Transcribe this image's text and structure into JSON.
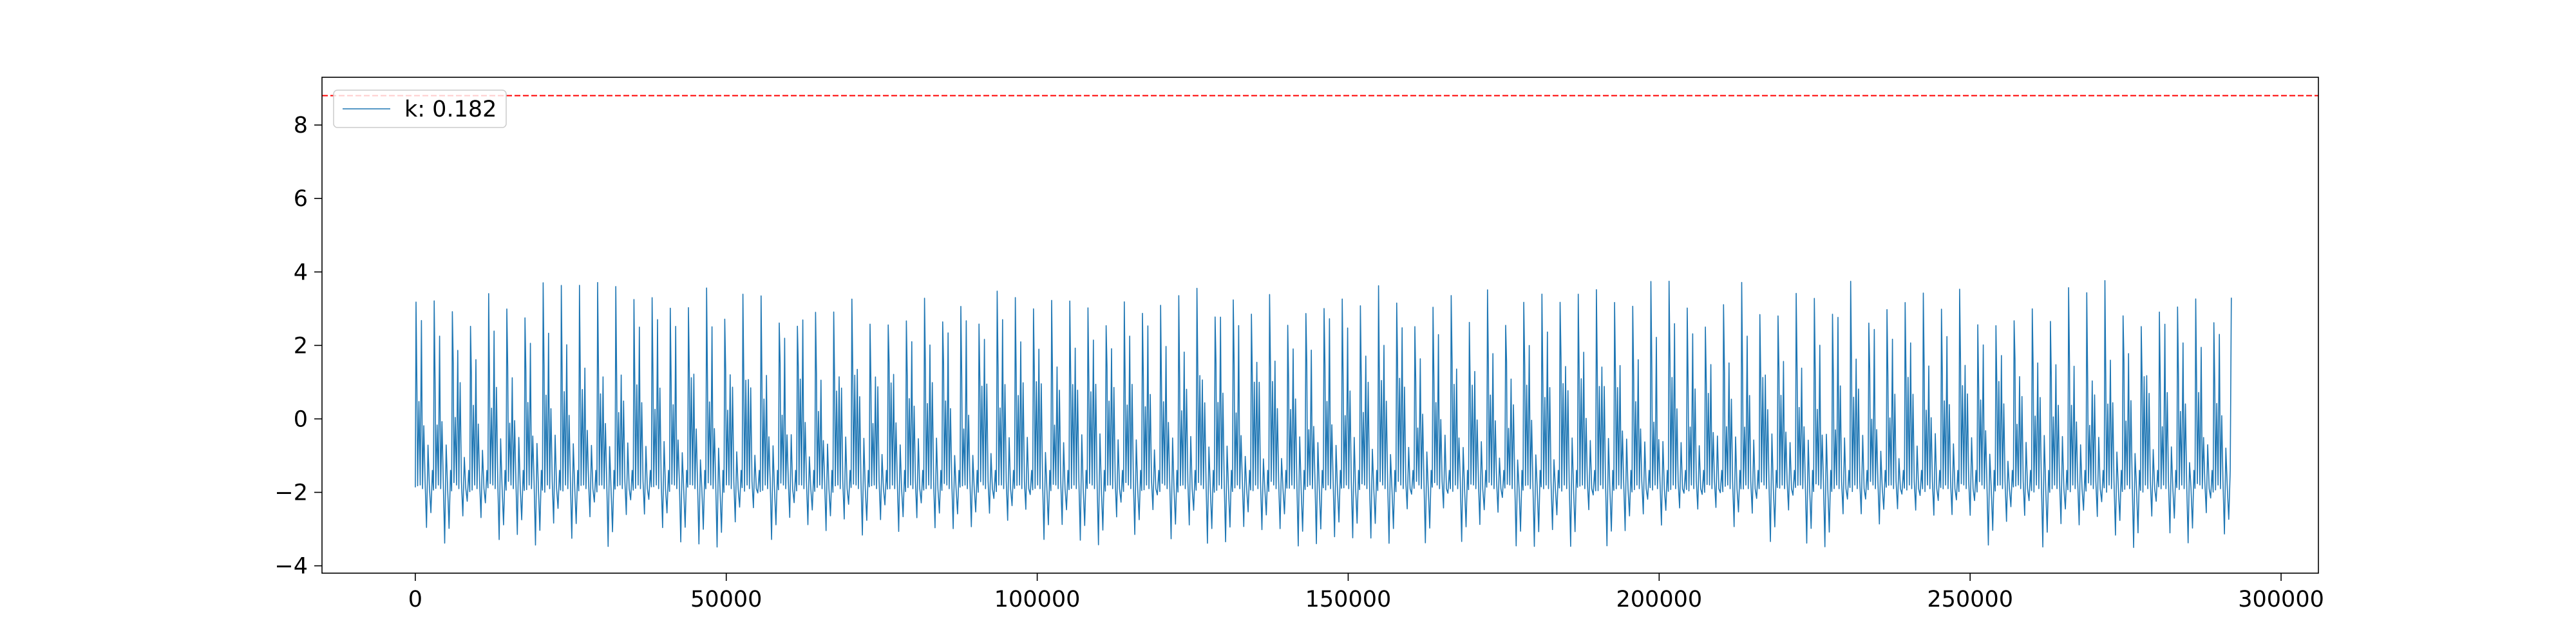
{
  "chart_data": {
    "type": "line",
    "title": "",
    "xlabel": "",
    "ylabel": "",
    "xlim": [
      -15000,
      306000
    ],
    "ylim": [
      -4.2,
      9.3
    ],
    "x_ticks": [
      0,
      50000,
      100000,
      150000,
      200000,
      250000,
      300000
    ],
    "x_tick_labels": [
      "0",
      "50000",
      "100000",
      "150000",
      "200000",
      "250000",
      "300000"
    ],
    "y_ticks": [
      -4,
      -2,
      0,
      2,
      4,
      6,
      8
    ],
    "y_tick_labels": [
      "−4",
      "−2",
      "0",
      "2",
      "4",
      "6",
      "8"
    ],
    "grid": false,
    "legend": {
      "placement": "top-left",
      "entries": [
        "k: 0.182"
      ]
    },
    "series": [
      {
        "name": "k: 0.182",
        "color": "#1f77b4",
        "style": "oscillating signal (approx. 100 cycles) between lows about -1.8 to -3.5 and peaks about 2.5 to 3.8",
        "x_start": 0,
        "x_end": 292000,
        "y_range": [
          -3.5,
          3.8
        ]
      }
    ],
    "threshold": {
      "y": 8.8,
      "color": "#ff0000",
      "style": "dashed"
    }
  }
}
